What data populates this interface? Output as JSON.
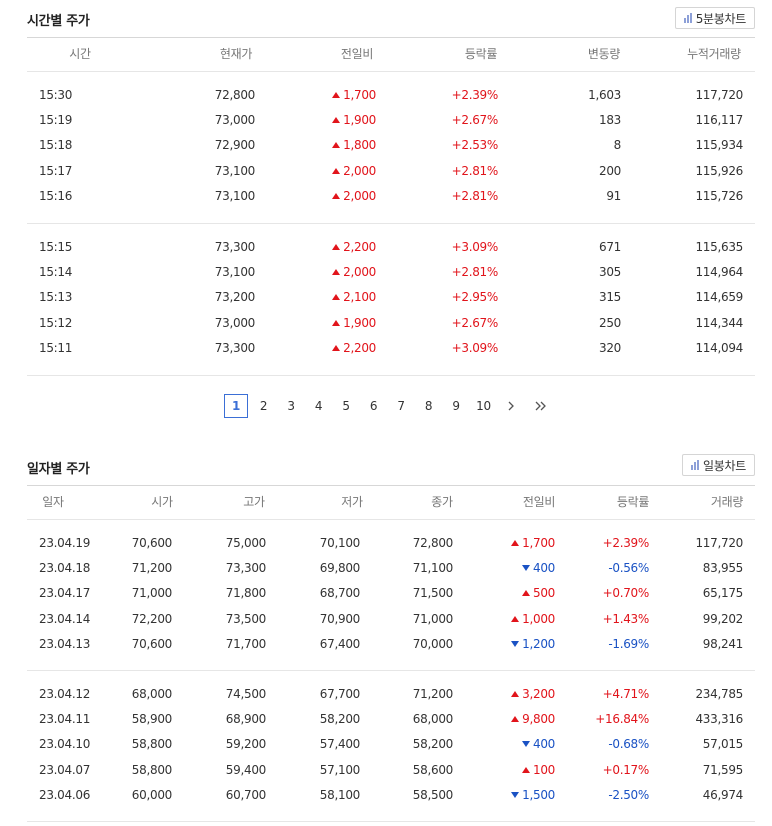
{
  "intraday": {
    "title": "시간별 주가",
    "chart_button": "5분봉차트",
    "headers": [
      "시간",
      "현재가",
      "전일비",
      "등락률",
      "변동량",
      "누적거래량"
    ],
    "groups": [
      [
        {
          "time": "15:30",
          "price": "72,800",
          "change": "1,700",
          "dir": "up",
          "rate": "+2.39%",
          "vol": "1,603",
          "cum": "117,720"
        },
        {
          "time": "15:19",
          "price": "73,000",
          "change": "1,900",
          "dir": "up",
          "rate": "+2.67%",
          "vol": "183",
          "cum": "116,117"
        },
        {
          "time": "15:18",
          "price": "72,900",
          "change": "1,800",
          "dir": "up",
          "rate": "+2.53%",
          "vol": "8",
          "cum": "115,934"
        },
        {
          "time": "15:17",
          "price": "73,100",
          "change": "2,000",
          "dir": "up",
          "rate": "+2.81%",
          "vol": "200",
          "cum": "115,926"
        },
        {
          "time": "15:16",
          "price": "73,100",
          "change": "2,000",
          "dir": "up",
          "rate": "+2.81%",
          "vol": "91",
          "cum": "115,726"
        }
      ],
      [
        {
          "time": "15:15",
          "price": "73,300",
          "change": "2,200",
          "dir": "up",
          "rate": "+3.09%",
          "vol": "671",
          "cum": "115,635"
        },
        {
          "time": "15:14",
          "price": "73,100",
          "change": "2,000",
          "dir": "up",
          "rate": "+2.81%",
          "vol": "305",
          "cum": "114,964"
        },
        {
          "time": "15:13",
          "price": "73,200",
          "change": "2,100",
          "dir": "up",
          "rate": "+2.95%",
          "vol": "315",
          "cum": "114,659"
        },
        {
          "time": "15:12",
          "price": "73,000",
          "change": "1,900",
          "dir": "up",
          "rate": "+2.67%",
          "vol": "250",
          "cum": "114,344"
        },
        {
          "time": "15:11",
          "price": "73,300",
          "change": "2,200",
          "dir": "up",
          "rate": "+3.09%",
          "vol": "320",
          "cum": "114,094"
        }
      ]
    ]
  },
  "pagination": {
    "pages": [
      "1",
      "2",
      "3",
      "4",
      "5",
      "6",
      "7",
      "8",
      "9",
      "10"
    ],
    "current": "1",
    "next_icon": "chevron-right-icon",
    "last_icon": "double-chevron-right-icon"
  },
  "daily": {
    "title": "일자별 주가",
    "chart_button": "일봉차트",
    "headers": [
      "일자",
      "시가",
      "고가",
      "저가",
      "종가",
      "전일비",
      "등락률",
      "거래량"
    ],
    "groups": [
      [
        {
          "date": "23.04.19",
          "open": "70,600",
          "high": "75,000",
          "low": "70,100",
          "close": "72,800",
          "change": "1,700",
          "dir": "up",
          "rate": "+2.39%",
          "vol": "117,720"
        },
        {
          "date": "23.04.18",
          "open": "71,200",
          "high": "73,300",
          "low": "69,800",
          "close": "71,100",
          "change": "400",
          "dir": "down",
          "rate": "-0.56%",
          "vol": "83,955"
        },
        {
          "date": "23.04.17",
          "open": "71,000",
          "high": "71,800",
          "low": "68,700",
          "close": "71,500",
          "change": "500",
          "dir": "up",
          "rate": "+0.70%",
          "vol": "65,175"
        },
        {
          "date": "23.04.14",
          "open": "72,200",
          "high": "73,500",
          "low": "70,900",
          "close": "71,000",
          "change": "1,000",
          "dir": "up",
          "rate": "+1.43%",
          "vol": "99,202"
        },
        {
          "date": "23.04.13",
          "open": "70,600",
          "high": "71,700",
          "low": "67,400",
          "close": "70,000",
          "change": "1,200",
          "dir": "down",
          "rate": "-1.69%",
          "vol": "98,241"
        }
      ],
      [
        {
          "date": "23.04.12",
          "open": "68,000",
          "high": "74,500",
          "low": "67,700",
          "close": "71,200",
          "change": "3,200",
          "dir": "up",
          "rate": "+4.71%",
          "vol": "234,785"
        },
        {
          "date": "23.04.11",
          "open": "58,900",
          "high": "68,900",
          "low": "58,200",
          "close": "68,000",
          "change": "9,800",
          "dir": "up",
          "rate": "+16.84%",
          "vol": "433,316"
        },
        {
          "date": "23.04.10",
          "open": "58,800",
          "high": "59,200",
          "low": "57,400",
          "close": "58,200",
          "change": "400",
          "dir": "down",
          "rate": "-0.68%",
          "vol": "57,015"
        },
        {
          "date": "23.04.07",
          "open": "58,800",
          "high": "59,400",
          "low": "57,100",
          "close": "58,600",
          "change": "100",
          "dir": "up",
          "rate": "+0.17%",
          "vol": "71,595"
        },
        {
          "date": "23.04.06",
          "open": "60,000",
          "high": "60,700",
          "low": "58,100",
          "close": "58,500",
          "change": "1,500",
          "dir": "down",
          "rate": "-2.50%",
          "vol": "46,974"
        }
      ]
    ]
  },
  "colors": {
    "up": "#e1141b",
    "down": "#1a52c4",
    "accent": "#3b6fd6"
  }
}
